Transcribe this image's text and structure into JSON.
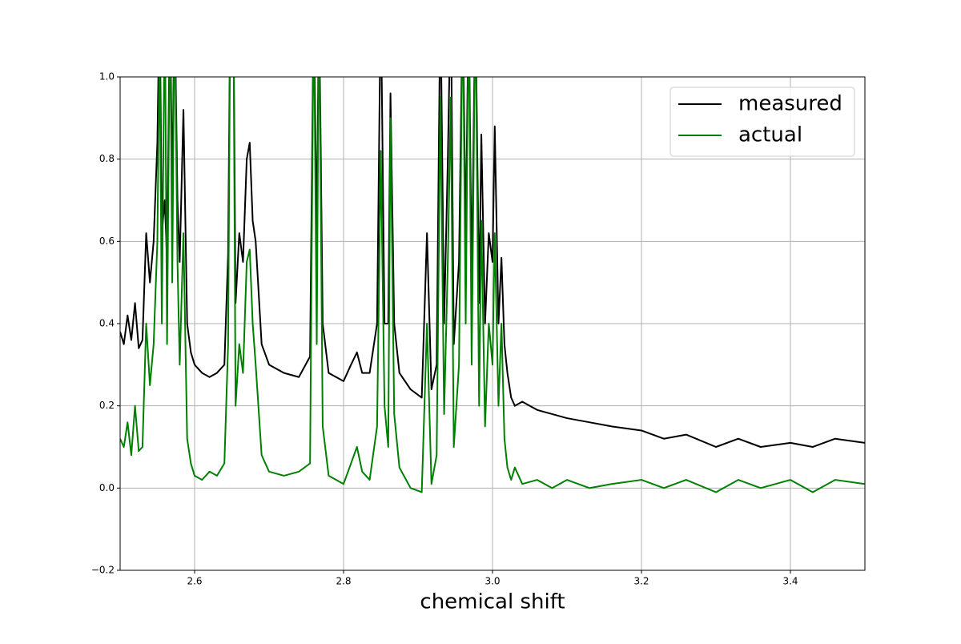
{
  "chart_data": {
    "type": "line",
    "xlabel": "chemical shift",
    "x": [
      2.5,
      2.505,
      2.51,
      2.515,
      2.52,
      2.525,
      2.53,
      2.535,
      2.54,
      2.545,
      2.55,
      2.553,
      2.556,
      2.56,
      2.563,
      2.567,
      2.57,
      2.573,
      2.577,
      2.58,
      2.585,
      2.59,
      2.595,
      2.6,
      2.61,
      2.62,
      2.63,
      2.64,
      2.645,
      2.648,
      2.652,
      2.655,
      2.66,
      2.665,
      2.67,
      2.674,
      2.678,
      2.682,
      2.69,
      2.7,
      2.72,
      2.74,
      2.755,
      2.76,
      2.764,
      2.767,
      2.772,
      2.78,
      2.8,
      2.81,
      2.818,
      2.825,
      2.835,
      2.845,
      2.85,
      2.855,
      2.86,
      2.863,
      2.868,
      2.875,
      2.89,
      2.905,
      2.912,
      2.918,
      2.925,
      2.93,
      2.935,
      2.94,
      2.944,
      2.948,
      2.955,
      2.96,
      2.964,
      2.968,
      2.972,
      2.977,
      2.982,
      2.985,
      2.99,
      2.995,
      3.0,
      3.003,
      3.008,
      3.012,
      3.016,
      3.02,
      3.025,
      3.03,
      3.04,
      3.06,
      3.08,
      3.1,
      3.13,
      3.16,
      3.2,
      3.23,
      3.26,
      3.3,
      3.33,
      3.36,
      3.4,
      3.43,
      3.46,
      3.5
    ],
    "series": [
      {
        "name": "measured",
        "color": "#000000",
        "values": [
          0.38,
          0.35,
          0.42,
          0.36,
          0.45,
          0.34,
          0.36,
          0.62,
          0.5,
          0.6,
          0.84,
          1.2,
          0.62,
          0.7,
          0.55,
          1.2,
          0.7,
          1.2,
          0.7,
          0.55,
          0.92,
          0.4,
          0.33,
          0.3,
          0.28,
          0.27,
          0.28,
          0.3,
          0.57,
          1.2,
          1.2,
          0.45,
          0.62,
          0.55,
          0.8,
          0.84,
          0.65,
          0.6,
          0.35,
          0.3,
          0.28,
          0.27,
          0.32,
          1.2,
          0.6,
          1.2,
          0.4,
          0.28,
          0.26,
          0.3,
          0.33,
          0.28,
          0.28,
          0.4,
          1.2,
          0.4,
          0.4,
          0.96,
          0.4,
          0.28,
          0.24,
          0.22,
          0.62,
          0.24,
          0.3,
          1.2,
          0.4,
          0.8,
          1.2,
          0.35,
          0.55,
          1.2,
          0.6,
          1.2,
          0.5,
          1.2,
          0.45,
          0.86,
          0.4,
          0.62,
          0.55,
          0.88,
          0.4,
          0.56,
          0.35,
          0.28,
          0.22,
          0.2,
          0.21,
          0.19,
          0.18,
          0.17,
          0.16,
          0.15,
          0.14,
          0.12,
          0.13,
          0.1,
          0.12,
          0.1,
          0.11,
          0.1,
          0.12,
          0.11
        ]
      },
      {
        "name": "actual",
        "color": "#008000",
        "values": [
          0.12,
          0.1,
          0.16,
          0.08,
          0.2,
          0.09,
          0.1,
          0.4,
          0.25,
          0.35,
          0.6,
          1.1,
          0.4,
          1.2,
          0.35,
          1.2,
          0.5,
          1.2,
          0.55,
          0.3,
          0.62,
          0.12,
          0.06,
          0.03,
          0.02,
          0.04,
          0.03,
          0.06,
          0.35,
          1.2,
          1.2,
          0.2,
          0.35,
          0.28,
          0.55,
          0.58,
          0.4,
          0.3,
          0.08,
          0.04,
          0.03,
          0.04,
          0.06,
          1.2,
          0.35,
          1.2,
          0.15,
          0.03,
          0.01,
          0.06,
          0.1,
          0.04,
          0.02,
          0.15,
          0.82,
          0.2,
          0.1,
          0.9,
          0.18,
          0.05,
          0.0,
          -0.01,
          0.4,
          0.01,
          0.08,
          0.95,
          0.18,
          0.55,
          0.95,
          0.1,
          0.3,
          1.2,
          0.4,
          1.2,
          0.3,
          1.2,
          0.2,
          0.65,
          0.15,
          0.4,
          0.3,
          0.62,
          0.2,
          0.4,
          0.12,
          0.05,
          0.02,
          0.05,
          0.01,
          0.02,
          0.0,
          0.02,
          0.0,
          0.01,
          0.02,
          0.0,
          0.02,
          -0.01,
          0.02,
          0.0,
          0.02,
          -0.01,
          0.02,
          0.01
        ]
      }
    ],
    "xlim": [
      2.5,
      3.5
    ],
    "xticks": [
      2.6,
      2.8,
      {
        "value": 3.0,
        "label": "3.0"
      },
      3.2,
      3.4
    ],
    "ylim": [
      -0.2,
      1.0
    ],
    "yticks": [
      {
        "value": -0.2,
        "label": "−0.2"
      },
      {
        "value": 0.0,
        "label": "0.0"
      },
      0.2,
      0.4,
      0.6,
      0.8,
      {
        "value": 1.0,
        "label": "1.0"
      }
    ],
    "grid": true,
    "legend": "upper right"
  }
}
